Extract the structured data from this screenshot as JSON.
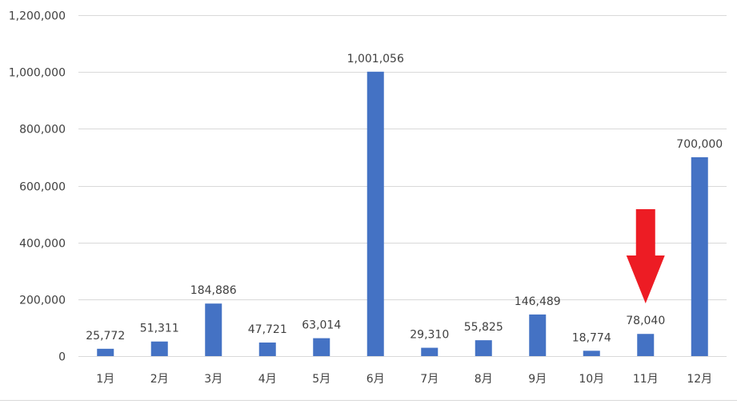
{
  "chart_data": {
    "type": "bar",
    "title": "",
    "xlabel": "",
    "ylabel": "",
    "categories": [
      "1月",
      "2月",
      "3月",
      "4月",
      "5月",
      "6月",
      "7月",
      "8月",
      "9月",
      "10月",
      "11月",
      "12月"
    ],
    "values": [
      25772,
      51311,
      184886,
      47721,
      63014,
      1001056,
      29310,
      55825,
      146489,
      18774,
      78040,
      700000
    ],
    "value_labels": [
      "25,772",
      "51,311",
      "184,886",
      "47,721",
      "63,014",
      "1,001,056",
      "29,310",
      "55,825",
      "146,489",
      "18,774",
      "78,040",
      "700,000"
    ],
    "ylim": [
      0,
      1200000
    ],
    "yticks": [
      0,
      200000,
      400000,
      600000,
      800000,
      1000000,
      1200000
    ],
    "ytick_labels": [
      "0",
      "200,000",
      "400,000",
      "600,000",
      "800,000",
      "1,000,000",
      "1,200,000"
    ],
    "grid": true,
    "legend": "none",
    "annotations": [
      {
        "type": "arrow",
        "direction": "down",
        "target_category": "11月",
        "color": "#ed1c24"
      }
    ]
  },
  "colors": {
    "bar": "#4472c4",
    "grid": "#d9d9d9",
    "text": "#404040",
    "arrow": "#ed1c24"
  }
}
